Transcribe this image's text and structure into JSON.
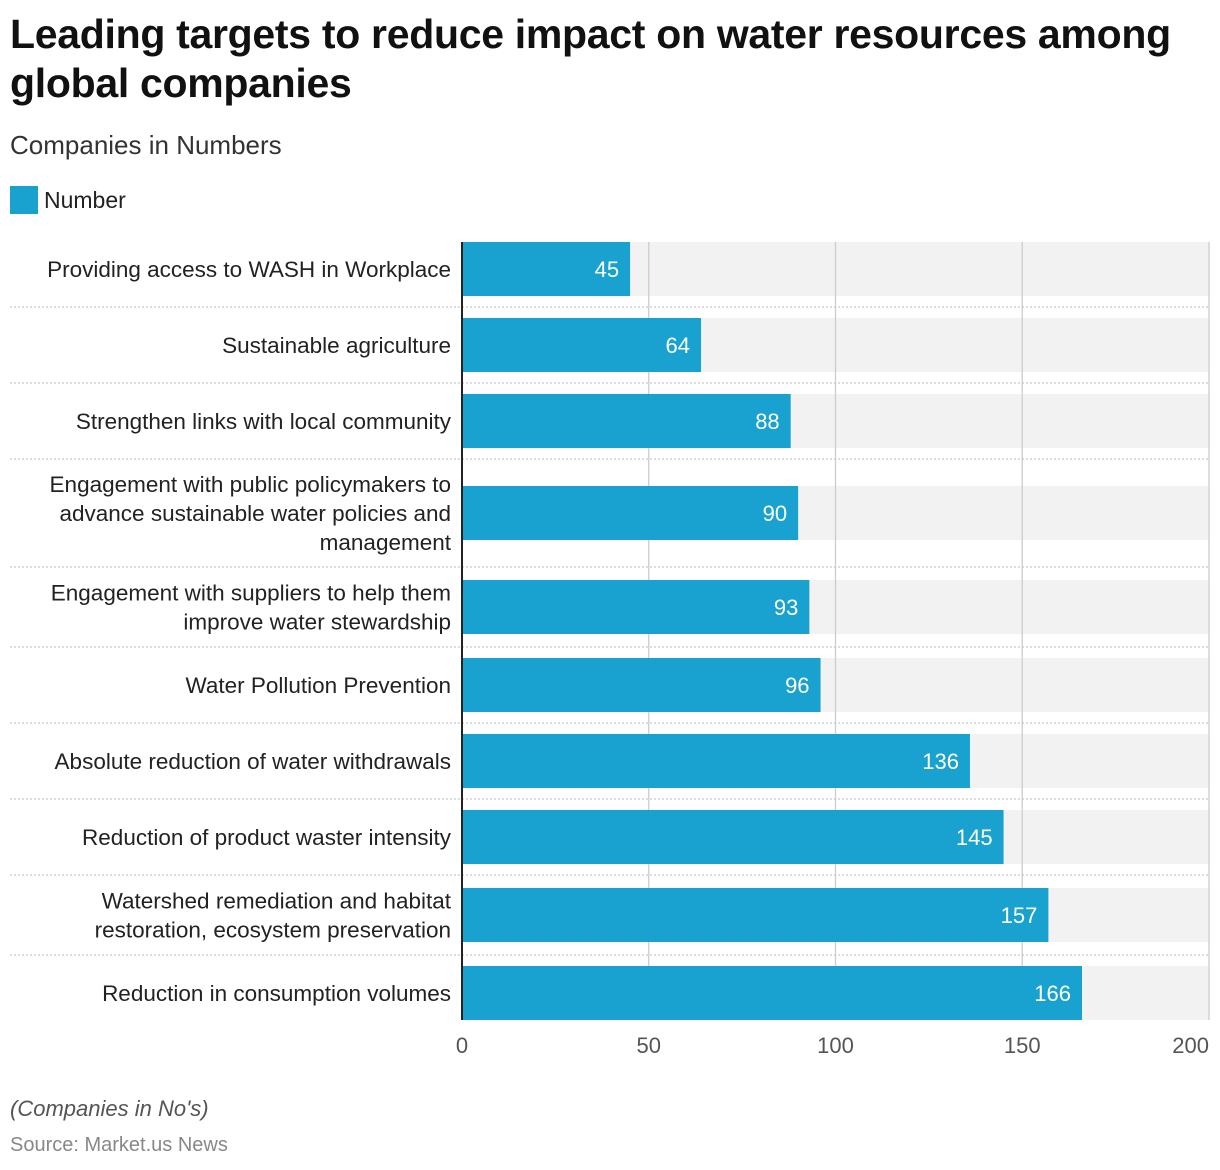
{
  "title": "Leading targets to reduce impact on water resources among global companies",
  "subtitle": "Companies in Numbers",
  "footnote": "(Companies in No's)",
  "source": "Source: Market.us News",
  "colors": {
    "bar": "#19a1cf",
    "band": "#f2f2f2",
    "grid": "#cccccc"
  },
  "chart_data": {
    "type": "bar",
    "orientation": "horizontal",
    "categories": [
      "Providing access to WASH in Workplace",
      "Sustainable agriculture",
      "Strengthen links with local community",
      "Engagement with public policymakers to advance sustainable water policies and management",
      "Engagement with suppliers to help them improve water stewardship",
      "Water Pollution Prevention",
      "Absolute reduction of water withdrawals",
      "Reduction of product waster intensity",
      "Watershed remediation and habitat restoration, ecosystem preservation",
      "Reduction in consumption volumes"
    ],
    "category_lines": [
      [
        "Providing access to WASH in Workplace"
      ],
      [
        "Sustainable agriculture"
      ],
      [
        "Strengthen links with local community"
      ],
      [
        "Engagement with public policymakers to",
        "advance sustainable water policies and",
        "management"
      ],
      [
        "Engagement with suppliers to help them",
        "improve water stewardship"
      ],
      [
        "Water Pollution Prevention"
      ],
      [
        "Absolute reduction of water withdrawals"
      ],
      [
        "Reduction of product waster intensity"
      ],
      [
        "Watershed remediation and habitat",
        "restoration, ecosystem preservation"
      ],
      [
        "Reduction in consumption volumes"
      ]
    ],
    "series": [
      {
        "name": "Number",
        "values": [
          45,
          64,
          88,
          90,
          93,
          96,
          136,
          145,
          157,
          166
        ]
      }
    ],
    "xlim": [
      0,
      200
    ],
    "xticks": [
      0,
      50,
      100,
      150,
      200
    ],
    "grid": true,
    "legend": "top-left",
    "data_labels": true
  }
}
